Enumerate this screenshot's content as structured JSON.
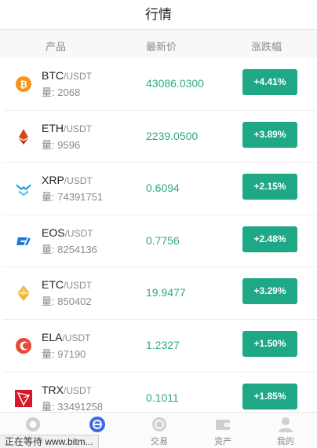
{
  "header": {
    "title": "行情"
  },
  "columns": {
    "product": "产品",
    "price": "最新价",
    "change": "涨跌幅"
  },
  "rows": [
    {
      "base": "BTC",
      "quote": "/USDT",
      "vol_label": "量:",
      "vol": "2068",
      "price": "43086.0300",
      "change": "+4.41%",
      "icon": "btc-icon",
      "color": "#f7931a"
    },
    {
      "base": "ETH",
      "quote": "/USDT",
      "vol_label": "量:",
      "vol": "9596",
      "price": "2239.0500",
      "change": "+3.89%",
      "icon": "eth-icon",
      "color": "#d9461b"
    },
    {
      "base": "XRP",
      "quote": "/USDT",
      "vol_label": "量:",
      "vol": "74391751",
      "price": "0.6094",
      "change": "+2.15%",
      "icon": "xrp-icon",
      "color": "#2aa6e0"
    },
    {
      "base": "EOS",
      "quote": "/USDT",
      "vol_label": "量:",
      "vol": "8254136",
      "price": "0.7756",
      "change": "+2.48%",
      "icon": "eos-icon",
      "color": "#1d7ad9"
    },
    {
      "base": "ETC",
      "quote": "/USDT",
      "vol_label": "量:",
      "vol": "850402",
      "price": "19.9477",
      "change": "+3.29%",
      "icon": "etc-icon",
      "color": "#f2b33a"
    },
    {
      "base": "ELA",
      "quote": "/USDT",
      "vol_label": "量:",
      "vol": "97190",
      "price": "1.2327",
      "change": "+1.50%",
      "icon": "ela-icon",
      "color": "#e84a3a"
    },
    {
      "base": "TRX",
      "quote": "/USDT",
      "vol_label": "量:",
      "vol": "33491258",
      "price": "0.1011",
      "change": "+1.85%",
      "icon": "trx-icon",
      "color": "#d8172a"
    }
  ],
  "tabbar": {
    "tabs": [
      {
        "label": "",
        "icon": "home-icon"
      },
      {
        "label": "",
        "icon": "market-icon"
      },
      {
        "label": "交易",
        "icon": "trade-icon"
      },
      {
        "label": "资产",
        "icon": "wallet-icon"
      },
      {
        "label": "我的",
        "icon": "user-icon"
      }
    ]
  },
  "status": {
    "text": "正在等待 www.bitm..."
  },
  "colors": {
    "accent": "#1fa886",
    "price": "#2ea88a",
    "active_tab": "#3b6be0"
  }
}
